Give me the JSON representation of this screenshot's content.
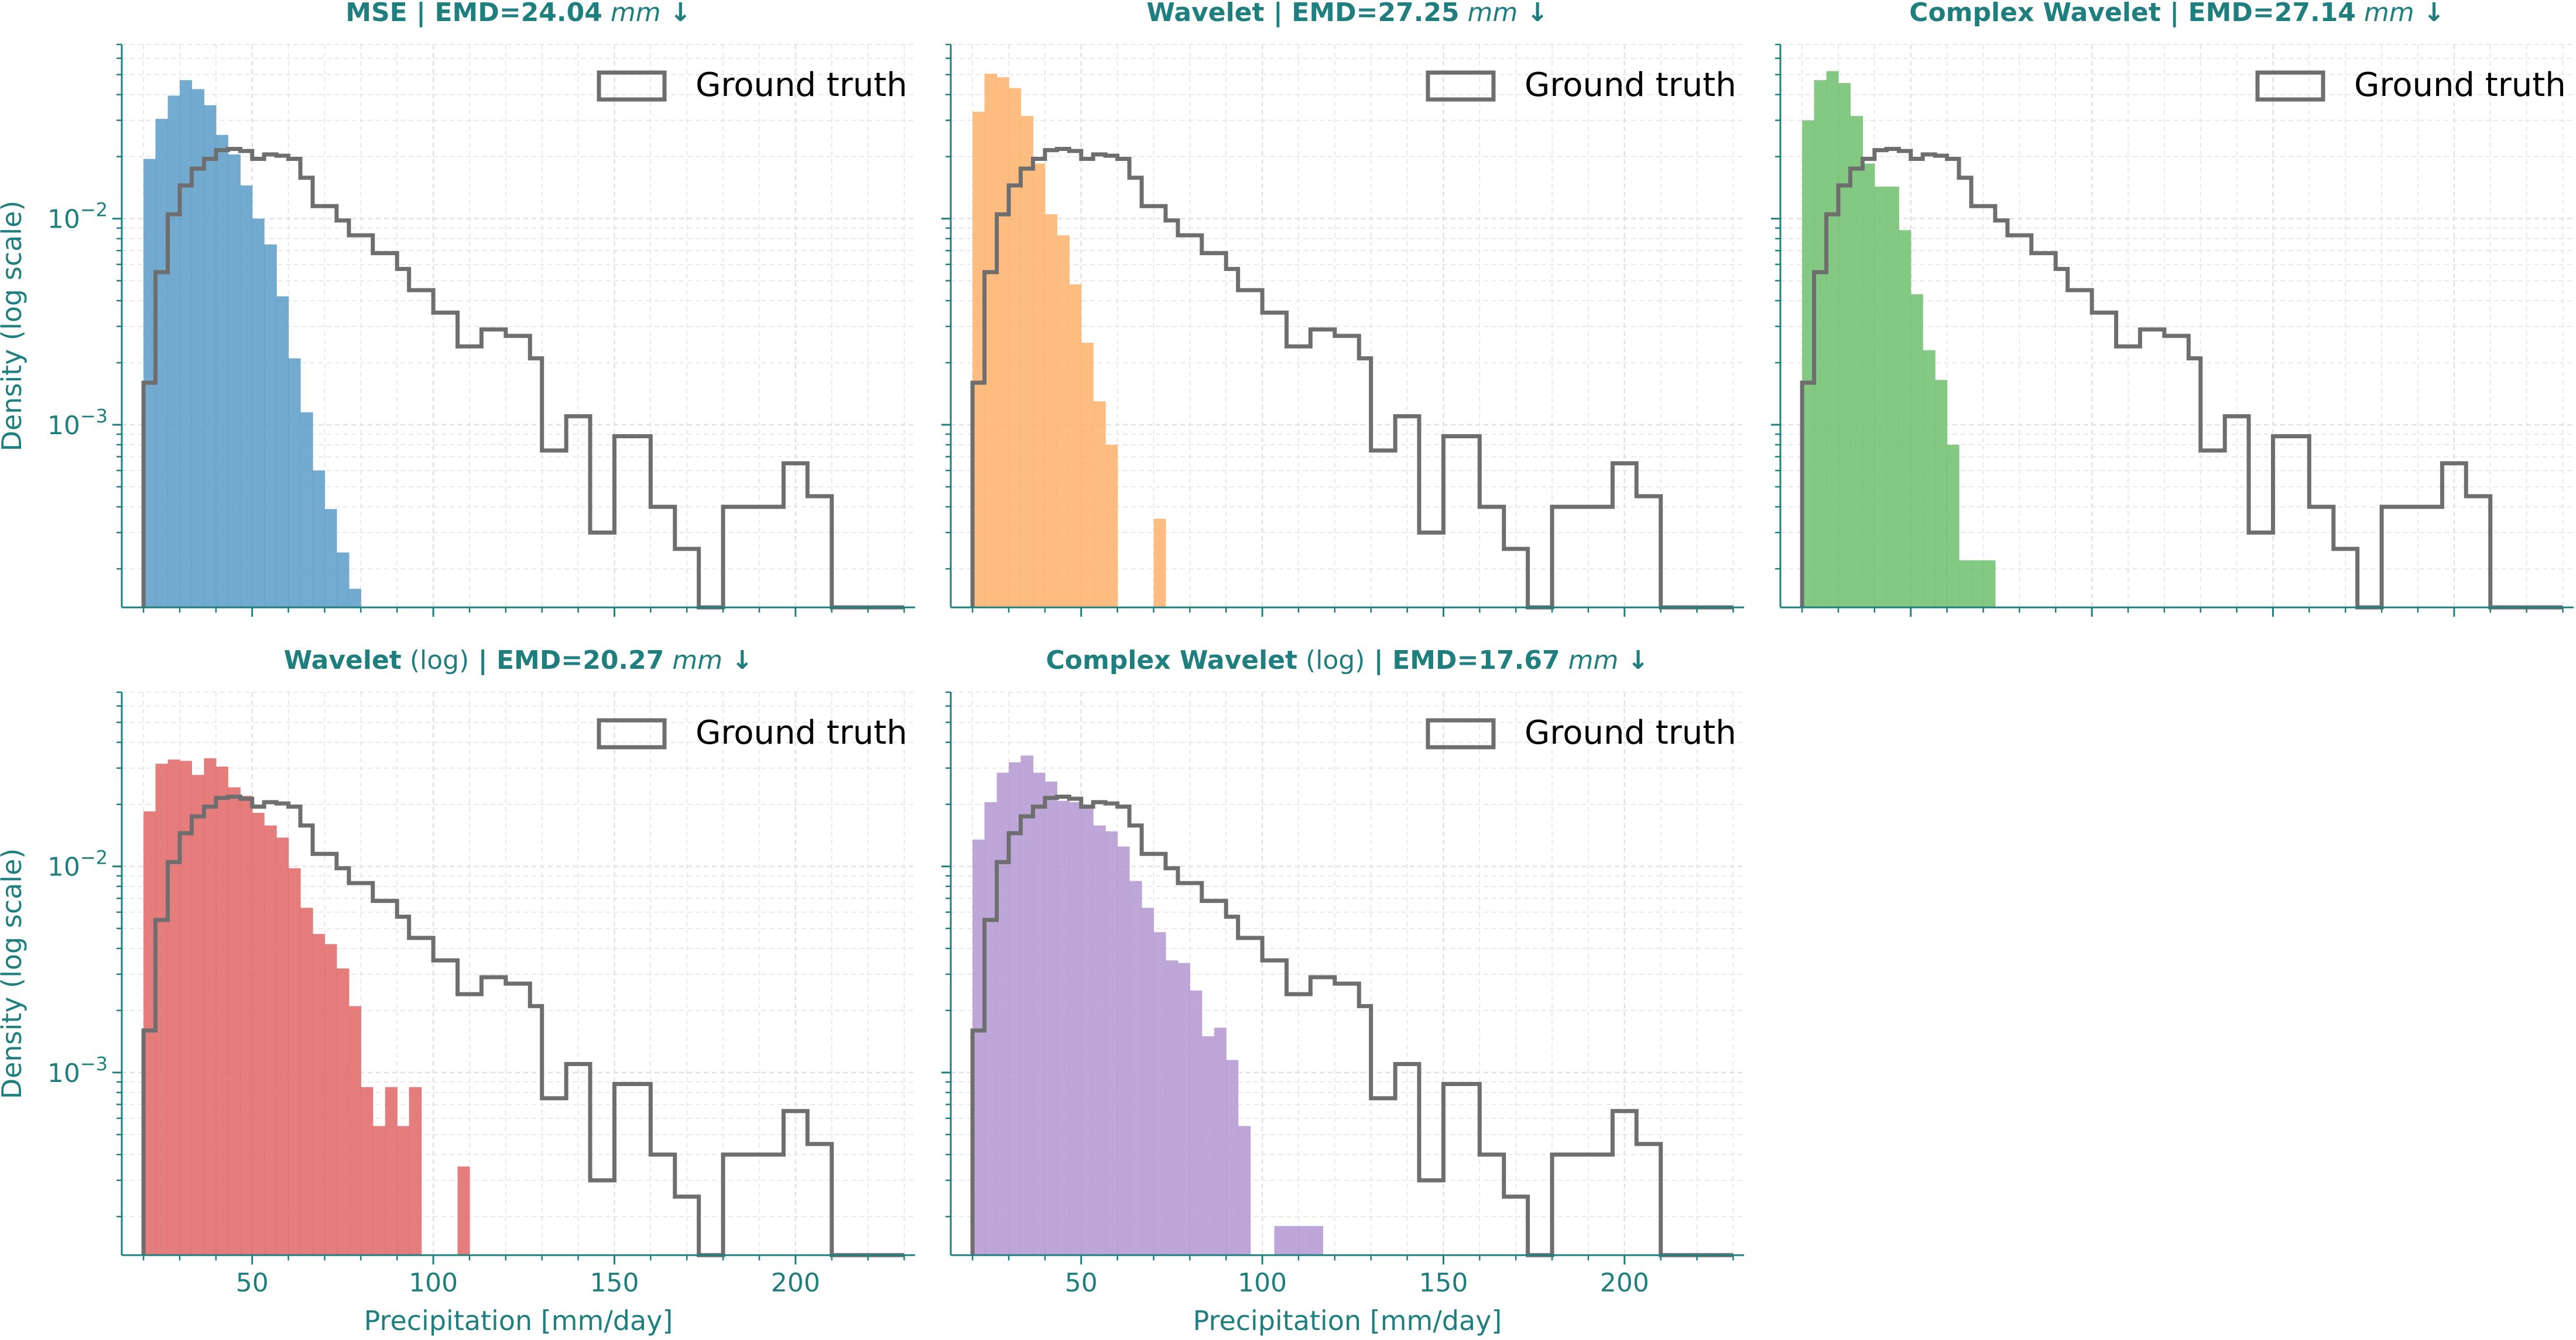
{
  "colors": {
    "axis": "#1f7f7f",
    "grid": "#e2e2e2",
    "ground_truth": "#6e6e6e"
  },
  "chart_data": [
    {
      "type": "bar",
      "id": "p1",
      "title": {
        "bold": "MSE",
        "sep": " | ",
        "emd_label": "EMD=",
        "emd_value": "24.04",
        "unit": "mm",
        "arrow": " ↓"
      },
      "color": "#5b9bc8",
      "ylabel": "Density (log scale)",
      "xlabel": "",
      "xlim": [
        14,
        233
      ],
      "ylim": [
        0.00013,
        0.07
      ],
      "yscale": "log",
      "yticks": [
        {
          "value": 0.01,
          "base": "10",
          "exp": "−2"
        },
        {
          "value": 0.001,
          "base": "10",
          "exp": "−3"
        }
      ],
      "xticks": [
        50,
        100,
        150,
        200
      ],
      "show_xtick_labels": false,
      "legend": "Ground truth",
      "legend_position": "top-right",
      "bin_edges": [
        20,
        23.3,
        26.7,
        30,
        33.3,
        36.7,
        40,
        43.3,
        46.7,
        50,
        53.3,
        56.7,
        60,
        63.3,
        66.7,
        70,
        73.3,
        76.7,
        80
      ],
      "values": [
        0.0195,
        0.0305,
        0.0395,
        0.047,
        0.0425,
        0.0355,
        0.0255,
        0.0205,
        0.0145,
        0.01,
        0.0075,
        0.0042,
        0.0021,
        0.00115,
        0.0006,
        0.00039,
        0.00024,
        0.00016
      ],
      "ground_truth": {
        "name": "Ground truth",
        "bin_edges": [
          20,
          23.3,
          26.7,
          30,
          33.3,
          36.7,
          40,
          43.3,
          46.7,
          50,
          53.3,
          56.7,
          60,
          63.3,
          66.7,
          70,
          73.3,
          76.7,
          80,
          83.3,
          86.7,
          90,
          93.3,
          96.7,
          100,
          103.3,
          106.7,
          110,
          113.3,
          116.7,
          120,
          123.3,
          126.7,
          130,
          133.3,
          136.7,
          140,
          143.3,
          146.7,
          150,
          153.3,
          156.7,
          160,
          163.3,
          166.7,
          170,
          173.3,
          176.7,
          180,
          183.3,
          186.7,
          190,
          193.3,
          196.7,
          200,
          203.3,
          206.7,
          210,
          213.3,
          216.7,
          220,
          223.3,
          226.7,
          230
        ],
        "values": [
          0.0016,
          0.0055,
          0.0105,
          0.0145,
          0.0175,
          0.0195,
          0.0215,
          0.0218,
          0.0213,
          0.0195,
          0.0205,
          0.0202,
          0.0195,
          0.0158,
          0.0115,
          0.0115,
          0.0098,
          0.0083,
          0.0083,
          0.0068,
          0.0068,
          0.0057,
          0.0045,
          0.0045,
          0.0035,
          0.0035,
          0.0024,
          0.0024,
          0.0029,
          0.0029,
          0.0027,
          0.0027,
          0.0021,
          0.00075,
          0.00075,
          0.0011,
          0.0011,
          0.0003,
          0.0003,
          0.00088,
          0.00088,
          0.00088,
          0.0004,
          0.0004,
          0.00025,
          0.00025,
          0.00013,
          0.00013,
          0.0004,
          0.0004,
          0.0004,
          0.0004,
          0.0004,
          0.00065,
          0.00065,
          0.00045,
          0.00045,
          0.00013,
          0.00013,
          0.00013,
          0.00013,
          0.00013,
          0.00013
        ]
      }
    },
    {
      "type": "bar",
      "id": "p2",
      "title": {
        "bold": "Wavelet",
        "sep": " | ",
        "emd_label": "EMD=",
        "emd_value": "27.25",
        "unit": "mm",
        "arrow": " ↓"
      },
      "color": "#fdb06a",
      "ylabel": "",
      "xlabel": "",
      "xlim": [
        14,
        233
      ],
      "ylim": [
        0.00013,
        0.07
      ],
      "yscale": "log",
      "yticks": [
        {
          "value": 0.01,
          "base": "",
          "exp": ""
        },
        {
          "value": 0.001,
          "base": "",
          "exp": ""
        }
      ],
      "xticks": [
        50,
        100,
        150,
        200
      ],
      "show_xtick_labels": false,
      "legend": "Ground truth",
      "legend_position": "top-right",
      "bin_edges": [
        20,
        23.3,
        26.7,
        30,
        33.3,
        36.7,
        40,
        43.3,
        46.7,
        50,
        53.3,
        56.7,
        60,
        63.3,
        66.7,
        70,
        73.3
      ],
      "values": [
        0.033,
        0.0505,
        0.0485,
        0.043,
        0.0315,
        0.0185,
        0.0105,
        0.0083,
        0.0048,
        0.0025,
        0.0013,
        0.0008,
        0.0,
        0.0,
        0.0,
        0.00035
      ],
      "ground_truth": {
        "name": "Ground truth",
        "bin_edges": [
          20,
          23.3,
          26.7,
          30,
          33.3,
          36.7,
          40,
          43.3,
          46.7,
          50,
          53.3,
          56.7,
          60,
          63.3,
          66.7,
          70,
          73.3,
          76.7,
          80,
          83.3,
          86.7,
          90,
          93.3,
          96.7,
          100,
          103.3,
          106.7,
          110,
          113.3,
          116.7,
          120,
          123.3,
          126.7,
          130,
          133.3,
          136.7,
          140,
          143.3,
          146.7,
          150,
          153.3,
          156.7,
          160,
          163.3,
          166.7,
          170,
          173.3,
          176.7,
          180,
          183.3,
          186.7,
          190,
          193.3,
          196.7,
          200,
          203.3,
          206.7,
          210,
          213.3,
          216.7,
          220,
          223.3,
          226.7,
          230
        ],
        "values": [
          0.0016,
          0.0055,
          0.0105,
          0.0145,
          0.0175,
          0.0195,
          0.0215,
          0.0218,
          0.0213,
          0.0195,
          0.0205,
          0.0202,
          0.0195,
          0.0158,
          0.0115,
          0.0115,
          0.0098,
          0.0083,
          0.0083,
          0.0068,
          0.0068,
          0.0057,
          0.0045,
          0.0045,
          0.0035,
          0.0035,
          0.0024,
          0.0024,
          0.0029,
          0.0029,
          0.0027,
          0.0027,
          0.0021,
          0.00075,
          0.00075,
          0.0011,
          0.0011,
          0.0003,
          0.0003,
          0.00088,
          0.00088,
          0.00088,
          0.0004,
          0.0004,
          0.00025,
          0.00025,
          0.00013,
          0.00013,
          0.0004,
          0.0004,
          0.0004,
          0.0004,
          0.0004,
          0.00065,
          0.00065,
          0.00045,
          0.00045,
          0.00013,
          0.00013,
          0.00013,
          0.00013,
          0.00013,
          0.00013
        ]
      }
    },
    {
      "type": "bar",
      "id": "p3",
      "title": {
        "bold": "Complex Wavelet",
        "sep": " | ",
        "emd_label": "EMD=",
        "emd_value": "27.14",
        "unit": "mm",
        "arrow": " ↓"
      },
      "color": "#6dbf6f",
      "ylabel": "",
      "xlabel": "",
      "xlim": [
        14,
        233
      ],
      "ylim": [
        0.00013,
        0.07
      ],
      "yscale": "log",
      "yticks": [
        {
          "value": 0.01,
          "base": "",
          "exp": ""
        },
        {
          "value": 0.001,
          "base": "",
          "exp": ""
        }
      ],
      "xticks": [
        50,
        100,
        150,
        200
      ],
      "show_xtick_labels": false,
      "legend": "Ground truth",
      "legend_position": "top-right",
      "bin_edges": [
        20,
        23.3,
        26.7,
        30,
        33.3,
        36.7,
        40,
        43.3,
        46.7,
        50,
        53.3,
        56.7,
        60,
        63.3,
        66.7,
        70,
        73.3
      ],
      "values": [
        0.03,
        0.047,
        0.052,
        0.0455,
        0.0315,
        0.0185,
        0.0143,
        0.0143,
        0.0088,
        0.0043,
        0.0023,
        0.00165,
        0.0008,
        0.00022,
        0.00022,
        0.00022
      ],
      "ground_truth": {
        "name": "Ground truth",
        "bin_edges": [
          20,
          23.3,
          26.7,
          30,
          33.3,
          36.7,
          40,
          43.3,
          46.7,
          50,
          53.3,
          56.7,
          60,
          63.3,
          66.7,
          70,
          73.3,
          76.7,
          80,
          83.3,
          86.7,
          90,
          93.3,
          96.7,
          100,
          103.3,
          106.7,
          110,
          113.3,
          116.7,
          120,
          123.3,
          126.7,
          130,
          133.3,
          136.7,
          140,
          143.3,
          146.7,
          150,
          153.3,
          156.7,
          160,
          163.3,
          166.7,
          170,
          173.3,
          176.7,
          180,
          183.3,
          186.7,
          190,
          193.3,
          196.7,
          200,
          203.3,
          206.7,
          210,
          213.3,
          216.7,
          220,
          223.3,
          226.7,
          230
        ],
        "values": [
          0.0016,
          0.0055,
          0.0105,
          0.0145,
          0.0175,
          0.0195,
          0.0215,
          0.0218,
          0.0213,
          0.0195,
          0.0205,
          0.0202,
          0.0195,
          0.0158,
          0.0115,
          0.0115,
          0.0098,
          0.0083,
          0.0083,
          0.0068,
          0.0068,
          0.0057,
          0.0045,
          0.0045,
          0.0035,
          0.0035,
          0.0024,
          0.0024,
          0.0029,
          0.0029,
          0.0027,
          0.0027,
          0.0021,
          0.00075,
          0.00075,
          0.0011,
          0.0011,
          0.0003,
          0.0003,
          0.00088,
          0.00088,
          0.00088,
          0.0004,
          0.0004,
          0.00025,
          0.00025,
          0.00013,
          0.00013,
          0.0004,
          0.0004,
          0.0004,
          0.0004,
          0.0004,
          0.00065,
          0.00065,
          0.00045,
          0.00045,
          0.00013,
          0.00013,
          0.00013,
          0.00013,
          0.00013,
          0.00013
        ]
      }
    },
    {
      "type": "bar",
      "id": "p4",
      "title": {
        "bold": "Wavelet",
        "normal": " (log)",
        "sep": " | ",
        "emd_label": "EMD=",
        "emd_value": "20.27",
        "unit": "mm",
        "arrow": " ↓"
      },
      "color": "#e06666",
      "ylabel": "Density (log scale)",
      "xlabel": "Precipitation [mm/day]",
      "xlim": [
        14,
        233
      ],
      "ylim": [
        0.00013,
        0.07
      ],
      "yscale": "log",
      "yticks": [
        {
          "value": 0.01,
          "base": "10",
          "exp": "−2"
        },
        {
          "value": 0.001,
          "base": "10",
          "exp": "−3"
        }
      ],
      "xticks": [
        50,
        100,
        150,
        200
      ],
      "show_xtick_labels": true,
      "legend": "Ground truth",
      "legend_position": "top-right",
      "bin_edges": [
        20,
        23.3,
        26.7,
        30,
        33.3,
        36.7,
        40,
        43.3,
        46.7,
        50,
        53.3,
        56.7,
        60,
        63.3,
        66.7,
        70,
        73.3,
        76.7,
        80,
        83.3,
        86.7,
        90,
        93.3,
        96.7,
        100,
        103.3,
        106.7,
        110
      ],
      "values": [
        0.0185,
        0.0315,
        0.033,
        0.0325,
        0.0278,
        0.0335,
        0.0305,
        0.0242,
        0.022,
        0.0182,
        0.0158,
        0.0138,
        0.0098,
        0.0063,
        0.0047,
        0.0042,
        0.0032,
        0.0021,
        0.00085,
        0.00055,
        0.00085,
        0.00055,
        0.00085,
        0.0,
        0.0,
        0.0,
        0.00035
      ],
      "ground_truth": {
        "name": "Ground truth",
        "bin_edges": [
          20,
          23.3,
          26.7,
          30,
          33.3,
          36.7,
          40,
          43.3,
          46.7,
          50,
          53.3,
          56.7,
          60,
          63.3,
          66.7,
          70,
          73.3,
          76.7,
          80,
          83.3,
          86.7,
          90,
          93.3,
          96.7,
          100,
          103.3,
          106.7,
          110,
          113.3,
          116.7,
          120,
          123.3,
          126.7,
          130,
          133.3,
          136.7,
          140,
          143.3,
          146.7,
          150,
          153.3,
          156.7,
          160,
          163.3,
          166.7,
          170,
          173.3,
          176.7,
          180,
          183.3,
          186.7,
          190,
          193.3,
          196.7,
          200,
          203.3,
          206.7,
          210,
          213.3,
          216.7,
          220,
          223.3,
          226.7,
          230
        ],
        "values": [
          0.0016,
          0.0055,
          0.0105,
          0.0145,
          0.0175,
          0.0195,
          0.0215,
          0.0218,
          0.0213,
          0.0195,
          0.0205,
          0.0202,
          0.0195,
          0.0158,
          0.0115,
          0.0115,
          0.0098,
          0.0083,
          0.0083,
          0.0068,
          0.0068,
          0.0057,
          0.0045,
          0.0045,
          0.0035,
          0.0035,
          0.0024,
          0.0024,
          0.0029,
          0.0029,
          0.0027,
          0.0027,
          0.0021,
          0.00075,
          0.00075,
          0.0011,
          0.0011,
          0.0003,
          0.0003,
          0.00088,
          0.00088,
          0.00088,
          0.0004,
          0.0004,
          0.00025,
          0.00025,
          0.00013,
          0.00013,
          0.0004,
          0.0004,
          0.0004,
          0.0004,
          0.0004,
          0.00065,
          0.00065,
          0.00045,
          0.00045,
          0.00013,
          0.00013,
          0.00013,
          0.00013,
          0.00013,
          0.00013
        ]
      }
    },
    {
      "type": "bar",
      "id": "p5",
      "title": {
        "bold": "Complex Wavelet",
        "normal": " (log)",
        "sep": " | ",
        "emd_label": "EMD=",
        "emd_value": "17.67",
        "unit": "mm",
        "arrow": " ↓"
      },
      "color": "#b396d2",
      "ylabel": "",
      "xlabel": "Precipitation [mm/day]",
      "xlim": [
        14,
        233
      ],
      "ylim": [
        0.00013,
        0.07
      ],
      "yscale": "log",
      "yticks": [
        {
          "value": 0.01,
          "base": "",
          "exp": ""
        },
        {
          "value": 0.001,
          "base": "",
          "exp": ""
        }
      ],
      "xticks": [
        50,
        100,
        150,
        200
      ],
      "show_xtick_labels": true,
      "legend": "Ground truth",
      "legend_position": "top-right",
      "bin_edges": [
        20,
        23.3,
        26.7,
        30,
        33.3,
        36.7,
        40,
        43.3,
        46.7,
        50,
        53.3,
        56.7,
        60,
        63.3,
        66.7,
        70,
        73.3,
        76.7,
        80,
        83.3,
        86.7,
        90,
        93.3,
        96.7,
        100,
        103.3,
        106.7,
        110,
        113.3,
        116.7
      ],
      "values": [
        0.0135,
        0.0205,
        0.0285,
        0.032,
        0.0345,
        0.0285,
        0.0258,
        0.0208,
        0.0205,
        0.0195,
        0.0158,
        0.0148,
        0.0125,
        0.0085,
        0.0063,
        0.0048,
        0.0035,
        0.0034,
        0.0025,
        0.0015,
        0.00165,
        0.00115,
        0.00055,
        0.0,
        0.0,
        0.00018,
        0.00018,
        0.00018,
        0.00018
      ],
      "ground_truth": {
        "name": "Ground truth",
        "bin_edges": [
          20,
          23.3,
          26.7,
          30,
          33.3,
          36.7,
          40,
          43.3,
          46.7,
          50,
          53.3,
          56.7,
          60,
          63.3,
          66.7,
          70,
          73.3,
          76.7,
          80,
          83.3,
          86.7,
          90,
          93.3,
          96.7,
          100,
          103.3,
          106.7,
          110,
          113.3,
          116.7,
          120,
          123.3,
          126.7,
          130,
          133.3,
          136.7,
          140,
          143.3,
          146.7,
          150,
          153.3,
          156.7,
          160,
          163.3,
          166.7,
          170,
          173.3,
          176.7,
          180,
          183.3,
          186.7,
          190,
          193.3,
          196.7,
          200,
          203.3,
          206.7,
          210,
          213.3,
          216.7,
          220,
          223.3,
          226.7,
          230
        ],
        "values": [
          0.0016,
          0.0055,
          0.0105,
          0.0145,
          0.0175,
          0.0195,
          0.0215,
          0.0218,
          0.0213,
          0.0195,
          0.0205,
          0.0202,
          0.0195,
          0.0158,
          0.0115,
          0.0115,
          0.0098,
          0.0083,
          0.0083,
          0.0068,
          0.0068,
          0.0057,
          0.0045,
          0.0045,
          0.0035,
          0.0035,
          0.0024,
          0.0024,
          0.0029,
          0.0029,
          0.0027,
          0.0027,
          0.0021,
          0.00075,
          0.00075,
          0.0011,
          0.0011,
          0.0003,
          0.0003,
          0.00088,
          0.00088,
          0.00088,
          0.0004,
          0.0004,
          0.00025,
          0.00025,
          0.00013,
          0.00013,
          0.0004,
          0.0004,
          0.0004,
          0.0004,
          0.0004,
          0.00065,
          0.00065,
          0.00045,
          0.00045,
          0.00013,
          0.00013,
          0.00013,
          0.00013,
          0.00013,
          0.00013
        ]
      }
    }
  ]
}
